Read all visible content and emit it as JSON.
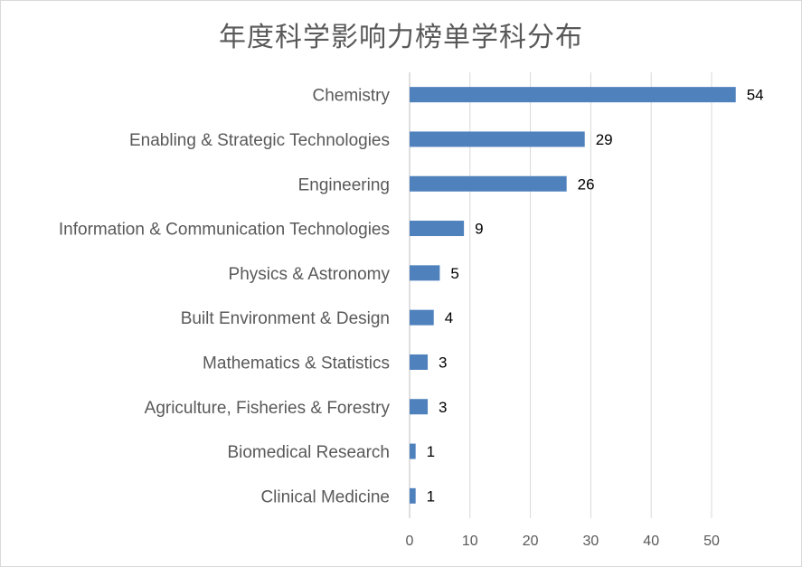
{
  "chart_data": {
    "type": "bar",
    "orientation": "horizontal",
    "title": "年度科学影响力榜单学科分布",
    "categories": [
      "Chemistry",
      "Enabling & Strategic Technologies",
      "Engineering",
      "Information & Communication Technologies",
      "Physics & Astronomy",
      "Built Environment & Design",
      "Mathematics & Statistics",
      "Agriculture, Fisheries & Forestry",
      "Biomedical Research",
      "Clinical Medicine"
    ],
    "values": [
      54,
      29,
      26,
      9,
      5,
      4,
      3,
      3,
      1,
      1
    ],
    "data_labels": [
      "54",
      "29",
      "26",
      "9",
      "5",
      "4",
      "3",
      "3",
      "1",
      "1"
    ],
    "xlim": [
      0,
      60
    ],
    "xticks": [
      "0",
      "10",
      "20",
      "30",
      "40",
      "50"
    ],
    "xtick_values": [
      0,
      10,
      20,
      30,
      40,
      50
    ],
    "grid": "vertical",
    "legend": "none",
    "bar_color": "#4f81bd",
    "grid_color": "#d9d9d9"
  }
}
